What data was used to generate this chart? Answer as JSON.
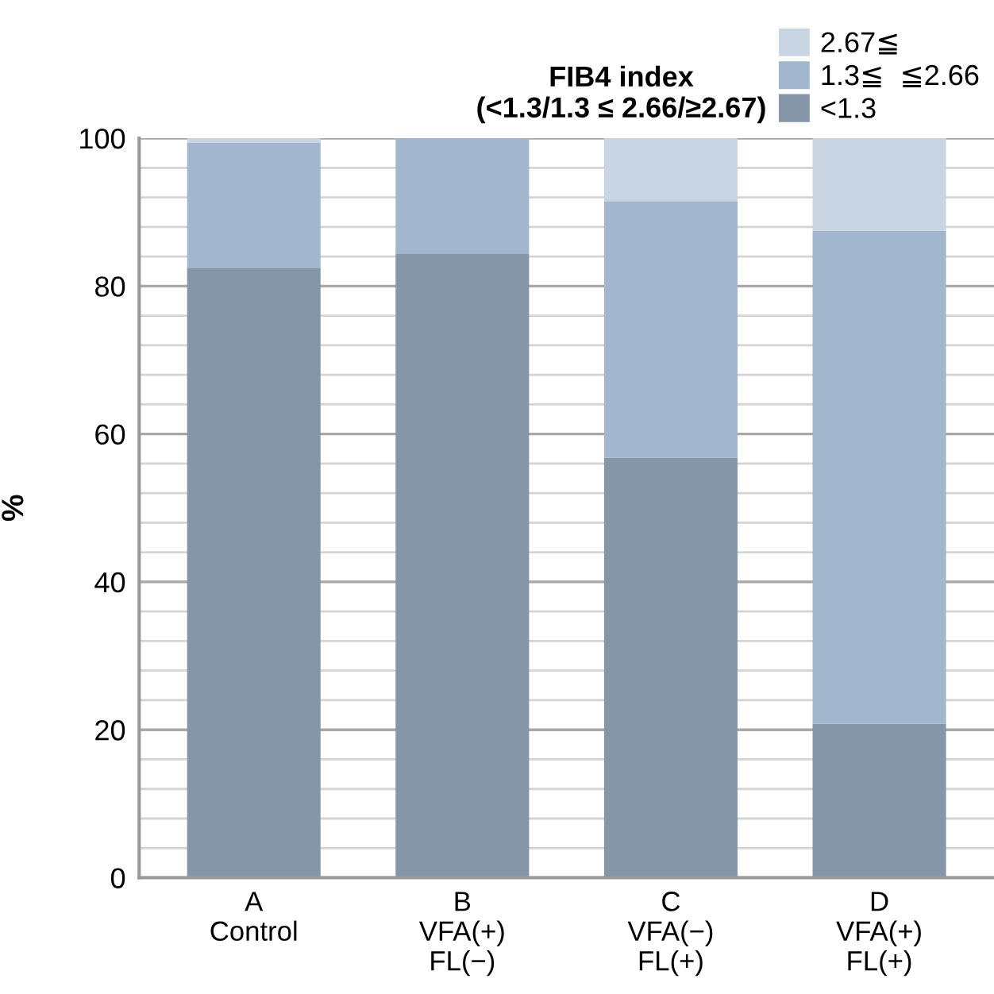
{
  "chart_data": {
    "type": "bar",
    "title": "FIB4 index\n(<1.3/1.3 ≤ 2.66/≥2.67)",
    "ylabel": "%",
    "categories": [
      "A\nControl",
      "B\nVFA(+)\nFL(−)",
      "C\nVFA(−)\nFL(+)",
      "D\nVFA(+)\nFL(+)"
    ],
    "stacked": true,
    "series": [
      {
        "name": "<1.3",
        "color": "#8596a8",
        "values": [
          82.4,
          84.4,
          56.8,
          20.8
        ]
      },
      {
        "name": "1.3≦  ≦2.66",
        "color": "#a2b7ce",
        "values": [
          17.0,
          15.6,
          34.7,
          66.7
        ]
      },
      {
        "name": "2.67≦",
        "color": "#c9d5e3",
        "values": [
          0.6,
          0,
          8.5,
          12.5
        ]
      }
    ],
    "ylim": [
      0,
      100
    ],
    "yticks": [
      0,
      {
        "value": 4,
        "label": null
      },
      {
        "value": 8,
        "label": null
      },
      {
        "value": 12,
        "label": null
      },
      {
        "value": 16,
        "label": null
      },
      20,
      {
        "value": 24,
        "label": null
      },
      {
        "value": 28,
        "label": null
      },
      {
        "value": 32,
        "label": null
      },
      {
        "value": 36,
        "label": null
      },
      40,
      {
        "value": 44,
        "label": null
      },
      {
        "value": 48,
        "label": null
      },
      {
        "value": 52,
        "label": null
      },
      {
        "value": 56,
        "label": null
      },
      60,
      {
        "value": 64,
        "label": null
      },
      {
        "value": 68,
        "label": null
      },
      {
        "value": 72,
        "label": null
      },
      {
        "value": 76,
        "label": null
      },
      80,
      {
        "value": 84,
        "label": null
      },
      {
        "value": 88,
        "label": null
      },
      {
        "value": 92,
        "label": null
      },
      {
        "value": 96,
        "label": null
      },
      100
    ],
    "grid": "y",
    "legend": "top right"
  }
}
